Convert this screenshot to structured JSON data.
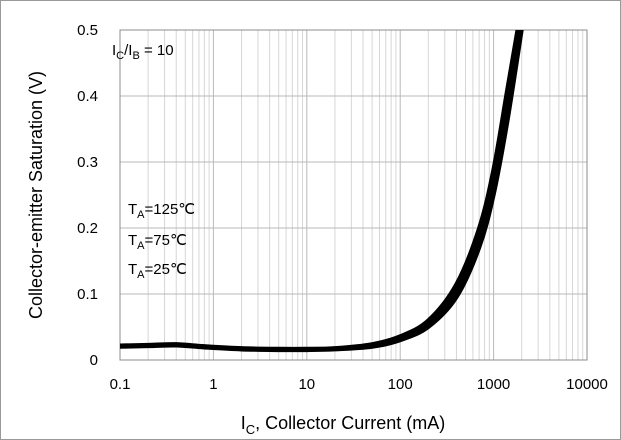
{
  "chart_data": {
    "type": "line",
    "title": "",
    "xlabel": {
      "main": "I",
      "sub": "C",
      "rest": ", Collector Current (mA)"
    },
    "ylabel": "Collector-emitter  Saturation (V)",
    "xscale": "log",
    "xlim": [
      0.1,
      10000
    ],
    "ylim": [
      0,
      0.5
    ],
    "x_tick_labels": [
      "0.1",
      "1",
      "10",
      "100",
      "1000",
      "10000"
    ],
    "y_tick_labels": [
      "0",
      "0.1",
      "0.2",
      "0.3",
      "0.4",
      "0.5"
    ],
    "grid": "minor vertical (log), major horizontal",
    "condition": {
      "main": "I",
      "sub1": "C",
      "mid": "/I",
      "sub2": "B",
      "rest": " = 10"
    },
    "series": [
      {
        "name": {
          "main": "T",
          "sub": "A",
          "rest": "=125℃"
        },
        "x": [
          0.1,
          0.2,
          0.4,
          0.8,
          2,
          5,
          10,
          20,
          50,
          100,
          200,
          400,
          700,
          1000,
          1400,
          1800
        ],
        "y": [
          0.022,
          0.023,
          0.024,
          0.021,
          0.018,
          0.017,
          0.017,
          0.018,
          0.024,
          0.036,
          0.06,
          0.115,
          0.2,
          0.29,
          0.41,
          0.5
        ]
      },
      {
        "name": {
          "main": "T",
          "sub": "A",
          "rest": "=75℃"
        },
        "x": [
          0.1,
          0.2,
          0.4,
          0.8,
          2,
          5,
          10,
          20,
          50,
          100,
          200,
          400,
          700,
          1000,
          1400,
          1900
        ],
        "y": [
          0.021,
          0.022,
          0.023,
          0.02,
          0.017,
          0.016,
          0.016,
          0.017,
          0.022,
          0.033,
          0.055,
          0.105,
          0.185,
          0.27,
          0.39,
          0.5
        ]
      },
      {
        "name": {
          "main": "T",
          "sub": "A",
          "rest": "=25℃"
        },
        "x": [
          0.1,
          0.2,
          0.4,
          0.8,
          2,
          5,
          10,
          20,
          50,
          100,
          200,
          400,
          700,
          1000,
          1400,
          2000
        ],
        "y": [
          0.02,
          0.021,
          0.022,
          0.019,
          0.016,
          0.015,
          0.015,
          0.016,
          0.02,
          0.03,
          0.05,
          0.095,
          0.17,
          0.25,
          0.36,
          0.5
        ]
      }
    ]
  }
}
